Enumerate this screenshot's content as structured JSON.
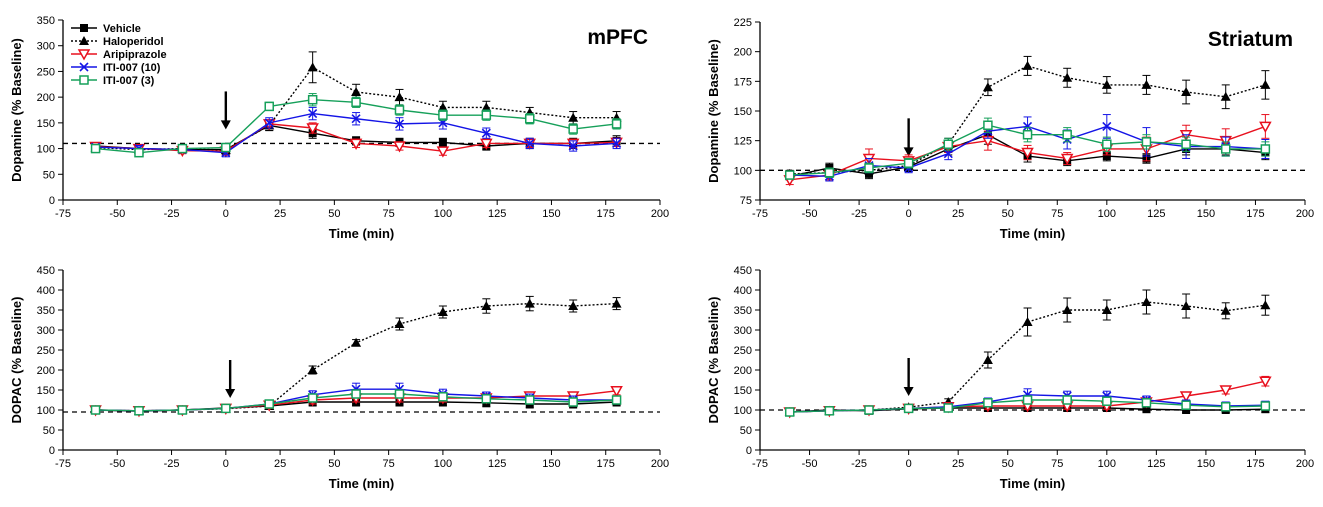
{
  "chart_data": [
    {
      "type": "line",
      "title": "mPFC",
      "xlabel": "Time (min)",
      "ylabel": "Dopamine (% Baseline)",
      "xlim": [
        -75,
        200
      ],
      "ylim": [
        0,
        350
      ],
      "xticks": [
        -75,
        -50,
        -25,
        0,
        25,
        50,
        75,
        100,
        125,
        150,
        175,
        200
      ],
      "yticks": [
        0,
        50,
        100,
        150,
        200,
        250,
        300,
        350
      ],
      "xtick_labels": [
        "-75",
        "-50",
        "-25",
        "0",
        "25",
        "50",
        "75",
        "100",
        "125",
        "150",
        "175",
        "200"
      ],
      "ytick_labels": [
        "0",
        "50",
        "100",
        "150",
        "200",
        "250",
        "300",
        "350"
      ],
      "baseline": 110,
      "arrow_at": 0,
      "legend": "top-left",
      "x": [
        -60,
        -40,
        -20,
        0,
        20,
        40,
        60,
        80,
        100,
        120,
        140,
        160,
        180
      ],
      "series": [
        {
          "name": "Vehicle",
          "color": "#000000",
          "marker": "square-filled",
          "line": "solid",
          "values": [
            105,
            100,
            98,
            98,
            145,
            130,
            115,
            112,
            112,
            105,
            110,
            110,
            115
          ],
          "errors": [
            5,
            6,
            6,
            8,
            10,
            10,
            8,
            8,
            8,
            8,
            10,
            10,
            10
          ]
        },
        {
          "name": "Haloperidol",
          "color": "#000000",
          "marker": "triangle-filled",
          "line": "dotted",
          "values": [
            102,
            98,
            100,
            97,
            145,
            258,
            210,
            200,
            180,
            180,
            170,
            160,
            160
          ],
          "errors": [
            5,
            6,
            6,
            8,
            10,
            30,
            15,
            15,
            12,
            12,
            10,
            12,
            12
          ]
        },
        {
          "name": "Aripiprazole",
          "color": "#e8101e",
          "marker": "triangle-down-open",
          "line": "solid",
          "values": [
            104,
            100,
            96,
            95,
            148,
            140,
            110,
            105,
            95,
            110,
            110,
            110,
            112
          ],
          "errors": [
            5,
            6,
            6,
            8,
            8,
            10,
            8,
            8,
            8,
            8,
            8,
            8,
            8
          ]
        },
        {
          "name": "ITI-007 (10)",
          "color": "#1414e6",
          "marker": "x",
          "line": "solid",
          "values": [
            103,
            100,
            98,
            92,
            150,
            168,
            158,
            148,
            150,
            130,
            110,
            105,
            110
          ],
          "errors": [
            5,
            6,
            6,
            8,
            10,
            12,
            12,
            12,
            12,
            10,
            10,
            10,
            10
          ]
        },
        {
          "name": "ITI-007 (3)",
          "color": "#16a05a",
          "marker": "square-open",
          "line": "solid",
          "values": [
            100,
            92,
            100,
            102,
            182,
            195,
            190,
            175,
            165,
            165,
            158,
            138,
            148
          ],
          "errors": [
            5,
            6,
            6,
            8,
            8,
            12,
            10,
            10,
            10,
            10,
            10,
            10,
            10
          ]
        }
      ]
    },
    {
      "type": "line",
      "title": "Striatum",
      "xlabel": "Time (min)",
      "ylabel": "Dopamine (% Baseline)",
      "xlim": [
        -75,
        200
      ],
      "ylim": [
        75,
        225
      ],
      "xticks": [
        -75,
        -50,
        -25,
        0,
        25,
        50,
        75,
        100,
        125,
        150,
        175,
        200
      ],
      "yticks": [
        75,
        100,
        125,
        150,
        175,
        200,
        225
      ],
      "xtick_labels": [
        "-75",
        "-50",
        "-25",
        "0",
        "25",
        "50",
        "75",
        "100",
        "125",
        "150",
        "175",
        "200"
      ],
      "ytick_labels": [
        "75",
        "100",
        "125",
        "150",
        "175",
        "200",
        "225"
      ],
      "baseline": 100,
      "arrow_at": 0,
      "x": [
        -60,
        -40,
        -20,
        0,
        20,
        40,
        60,
        80,
        100,
        120,
        140,
        160,
        180
      ],
      "series": [
        {
          "name": "Vehicle",
          "color": "#000000",
          "marker": "square-filled",
          "line": "solid",
          "values": [
            95,
            102,
            97,
            103,
            118,
            130,
            112,
            108,
            112,
            110,
            118,
            118,
            115
          ],
          "errors": [
            3,
            4,
            4,
            4,
            5,
            8,
            5,
            4,
            4,
            4,
            5,
            5,
            6
          ]
        },
        {
          "name": "Haloperidol",
          "color": "#000000",
          "marker": "triangle-filled",
          "line": "dotted",
          "values": [
            97,
            98,
            100,
            104,
            122,
            170,
            188,
            178,
            172,
            172,
            166,
            162,
            172
          ],
          "errors": [
            3,
            4,
            5,
            5,
            5,
            7,
            8,
            8,
            7,
            8,
            10,
            10,
            12
          ]
        },
        {
          "name": "Aripiprazole",
          "color": "#e8101e",
          "marker": "triangle-down-open",
          "line": "solid",
          "values": [
            92,
            96,
            110,
            108,
            120,
            125,
            115,
            110,
            118,
            118,
            130,
            125,
            137
          ],
          "errors": [
            4,
            4,
            8,
            5,
            5,
            8,
            6,
            5,
            5,
            10,
            8,
            10,
            10
          ]
        },
        {
          "name": "ITI-007 (10)",
          "color": "#1414e6",
          "marker": "x",
          "line": "solid",
          "values": [
            96,
            95,
            104,
            102,
            114,
            133,
            137,
            126,
            137,
            124,
            120,
            120,
            118
          ],
          "errors": [
            3,
            4,
            6,
            4,
            5,
            6,
            8,
            8,
            10,
            12,
            10,
            8,
            8
          ]
        },
        {
          "name": "ITI-007 (3)",
          "color": "#16a05a",
          "marker": "square-open",
          "line": "solid",
          "values": [
            96,
            98,
            102,
            106,
            122,
            138,
            130,
            130,
            122,
            124,
            122,
            118,
            118
          ],
          "errors": [
            3,
            4,
            4,
            4,
            5,
            6,
            6,
            6,
            6,
            6,
            6,
            6,
            6
          ]
        }
      ]
    },
    {
      "type": "line",
      "title": "",
      "xlabel": "Time (min)",
      "ylabel": "DOPAC (% Baseline)",
      "xlim": [
        -75,
        200
      ],
      "ylim": [
        0,
        450
      ],
      "xticks": [
        -75,
        -50,
        -25,
        0,
        25,
        50,
        75,
        100,
        125,
        150,
        175,
        200
      ],
      "yticks": [
        0,
        50,
        100,
        150,
        200,
        250,
        300,
        350,
        400,
        450
      ],
      "xtick_labels": [
        "-75",
        "-50",
        "-25",
        "0",
        "25",
        "50",
        "75",
        "100",
        "125",
        "150",
        "175",
        "200"
      ],
      "ytick_labels": [
        "0",
        "50",
        "100",
        "150",
        "200",
        "250",
        "300",
        "350",
        "400",
        "450"
      ],
      "baseline": 95,
      "arrow_at": 2,
      "x": [
        -60,
        -40,
        -20,
        0,
        20,
        40,
        60,
        80,
        100,
        120,
        140,
        160,
        180
      ],
      "series": [
        {
          "name": "Vehicle",
          "color": "#000000",
          "marker": "square-filled",
          "line": "solid",
          "values": [
            100,
            97,
            100,
            105,
            110,
            120,
            120,
            120,
            120,
            118,
            115,
            115,
            120
          ],
          "errors": [
            5,
            5,
            5,
            5,
            8,
            10,
            10,
            10,
            10,
            10,
            10,
            10,
            10
          ]
        },
        {
          "name": "Haloperidol",
          "color": "#000000",
          "marker": "triangle-filled",
          "line": "dotted",
          "values": [
            100,
            98,
            100,
            103,
            110,
            200,
            268,
            315,
            345,
            360,
            366,
            360,
            366
          ],
          "errors": [
            5,
            5,
            5,
            5,
            8,
            10,
            8,
            15,
            15,
            18,
            18,
            15,
            15
          ]
        },
        {
          "name": "Aripiprazole",
          "color": "#e8101e",
          "marker": "triangle-down-open",
          "line": "solid",
          "values": [
            100,
            98,
            100,
            104,
            112,
            125,
            130,
            130,
            130,
            130,
            135,
            135,
            148
          ],
          "errors": [
            5,
            5,
            5,
            5,
            8,
            10,
            10,
            10,
            10,
            10,
            10,
            10,
            10
          ]
        },
        {
          "name": "ITI-007 (10)",
          "color": "#1414e6",
          "marker": "x",
          "line": "solid",
          "values": [
            100,
            98,
            100,
            104,
            115,
            138,
            152,
            152,
            140,
            135,
            130,
            125,
            125
          ],
          "errors": [
            5,
            5,
            5,
            5,
            8,
            10,
            15,
            15,
            12,
            10,
            10,
            10,
            10
          ]
        },
        {
          "name": "ITI-007 (3)",
          "color": "#16a05a",
          "marker": "square-open",
          "line": "solid",
          "values": [
            100,
            98,
            100,
            104,
            115,
            130,
            140,
            140,
            133,
            128,
            125,
            120,
            125
          ],
          "errors": [
            5,
            5,
            5,
            5,
            8,
            10,
            10,
            10,
            10,
            10,
            10,
            10,
            10
          ]
        }
      ]
    },
    {
      "type": "line",
      "title": "",
      "xlabel": "Time (min)",
      "ylabel": "DOPAC (% Baseline)",
      "xlim": [
        -75,
        200
      ],
      "ylim": [
        0,
        450
      ],
      "xticks": [
        -75,
        -50,
        -25,
        0,
        25,
        50,
        75,
        100,
        125,
        150,
        175,
        200
      ],
      "yticks": [
        0,
        50,
        100,
        150,
        200,
        250,
        300,
        350,
        400,
        450
      ],
      "xtick_labels": [
        "-75",
        "-50",
        "-25",
        "0",
        "25",
        "50",
        "75",
        "100",
        "125",
        "150",
        "175",
        "200"
      ],
      "ytick_labels": [
        "0",
        "50",
        "100",
        "150",
        "200",
        "250",
        "300",
        "350",
        "400",
        "450"
      ],
      "baseline": 100,
      "arrow_at": 0,
      "x": [
        -60,
        -40,
        -20,
        0,
        20,
        40,
        60,
        80,
        100,
        120,
        140,
        160,
        180
      ],
      "series": [
        {
          "name": "Vehicle",
          "color": "#000000",
          "marker": "square-filled",
          "line": "solid",
          "values": [
            95,
            100,
            98,
            103,
            105,
            105,
            105,
            105,
            105,
            102,
            100,
            100,
            102
          ],
          "errors": [
            5,
            5,
            5,
            5,
            5,
            6,
            6,
            6,
            6,
            6,
            6,
            6,
            8
          ]
        },
        {
          "name": "Haloperidol",
          "color": "#000000",
          "marker": "triangle-filled",
          "line": "dotted",
          "values": [
            95,
            98,
            100,
            107,
            120,
            225,
            320,
            350,
            350,
            370,
            360,
            348,
            362
          ],
          "errors": [
            5,
            5,
            5,
            5,
            8,
            20,
            35,
            30,
            25,
            30,
            30,
            20,
            25
          ]
        },
        {
          "name": "Aripiprazole",
          "color": "#e8101e",
          "marker": "triangle-down-open",
          "line": "solid",
          "values": [
            95,
            98,
            100,
            104,
            108,
            110,
            110,
            110,
            110,
            120,
            135,
            150,
            172
          ],
          "errors": [
            5,
            5,
            5,
            5,
            6,
            8,
            8,
            8,
            8,
            8,
            10,
            10,
            12
          ]
        },
        {
          "name": "ITI-007 (10)",
          "color": "#1414e6",
          "marker": "x",
          "line": "solid",
          "values": [
            95,
            98,
            100,
            104,
            108,
            120,
            138,
            135,
            135,
            125,
            115,
            110,
            112
          ],
          "errors": [
            5,
            5,
            5,
            5,
            6,
            10,
            15,
            12,
            12,
            10,
            10,
            10,
            10
          ]
        },
        {
          "name": "ITI-007 (3)",
          "color": "#16a05a",
          "marker": "square-open",
          "line": "solid",
          "values": [
            95,
            98,
            100,
            104,
            105,
            118,
            125,
            125,
            122,
            118,
            112,
            108,
            110
          ],
          "errors": [
            5,
            5,
            5,
            5,
            6,
            8,
            10,
            10,
            10,
            10,
            10,
            10,
            10
          ]
        }
      ]
    }
  ]
}
